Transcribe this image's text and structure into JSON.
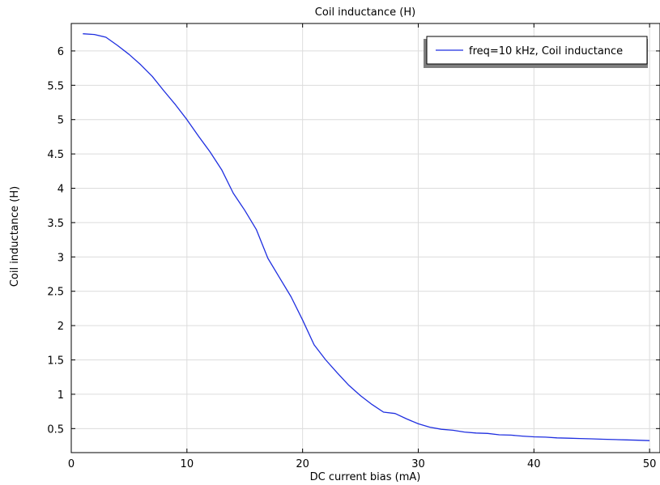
{
  "chart_data": {
    "type": "line",
    "title": "Coil inductance (H)",
    "xlabel": "DC current bias (mA)",
    "ylabel": "Coil inductance (H)",
    "xlim": [
      0,
      50.9
    ],
    "ylim": [
      0.15,
      6.4
    ],
    "xticks": [
      "0",
      "10",
      "20",
      "30",
      "40",
      "50"
    ],
    "yticks": [
      "0.5",
      "1",
      "1.5",
      "2",
      "2.5",
      "3",
      "3.5",
      "4",
      "4.5",
      "5",
      "5.5",
      "6"
    ],
    "grid": true,
    "legend_position": "top-right",
    "series": [
      {
        "name": "freq=10 kHz, Coil inductance",
        "color": "#1f2fe0",
        "x": [
          1,
          2,
          3,
          4,
          5,
          6,
          7,
          8,
          9,
          10,
          11,
          12,
          13,
          14,
          15,
          16,
          17,
          18,
          19,
          20,
          21,
          22,
          23,
          24,
          25,
          26,
          27,
          28,
          29,
          30,
          31,
          32,
          33,
          34,
          35,
          36,
          37,
          38,
          39,
          40,
          41,
          42,
          43,
          44,
          45,
          46,
          47,
          48,
          49,
          50
        ],
        "y": [
          6.25,
          6.24,
          6.2,
          6.08,
          5.95,
          5.8,
          5.63,
          5.42,
          5.22,
          5.0,
          4.76,
          4.53,
          4.27,
          3.93,
          3.68,
          3.4,
          2.98,
          2.7,
          2.42,
          2.08,
          1.72,
          1.5,
          1.31,
          1.13,
          0.98,
          0.85,
          0.74,
          0.72,
          0.64,
          0.57,
          0.52,
          0.49,
          0.475,
          0.45,
          0.435,
          0.43,
          0.41,
          0.405,
          0.39,
          0.38,
          0.375,
          0.365,
          0.36,
          0.355,
          0.35,
          0.345,
          0.34,
          0.335,
          0.33,
          0.325
        ]
      }
    ]
  }
}
